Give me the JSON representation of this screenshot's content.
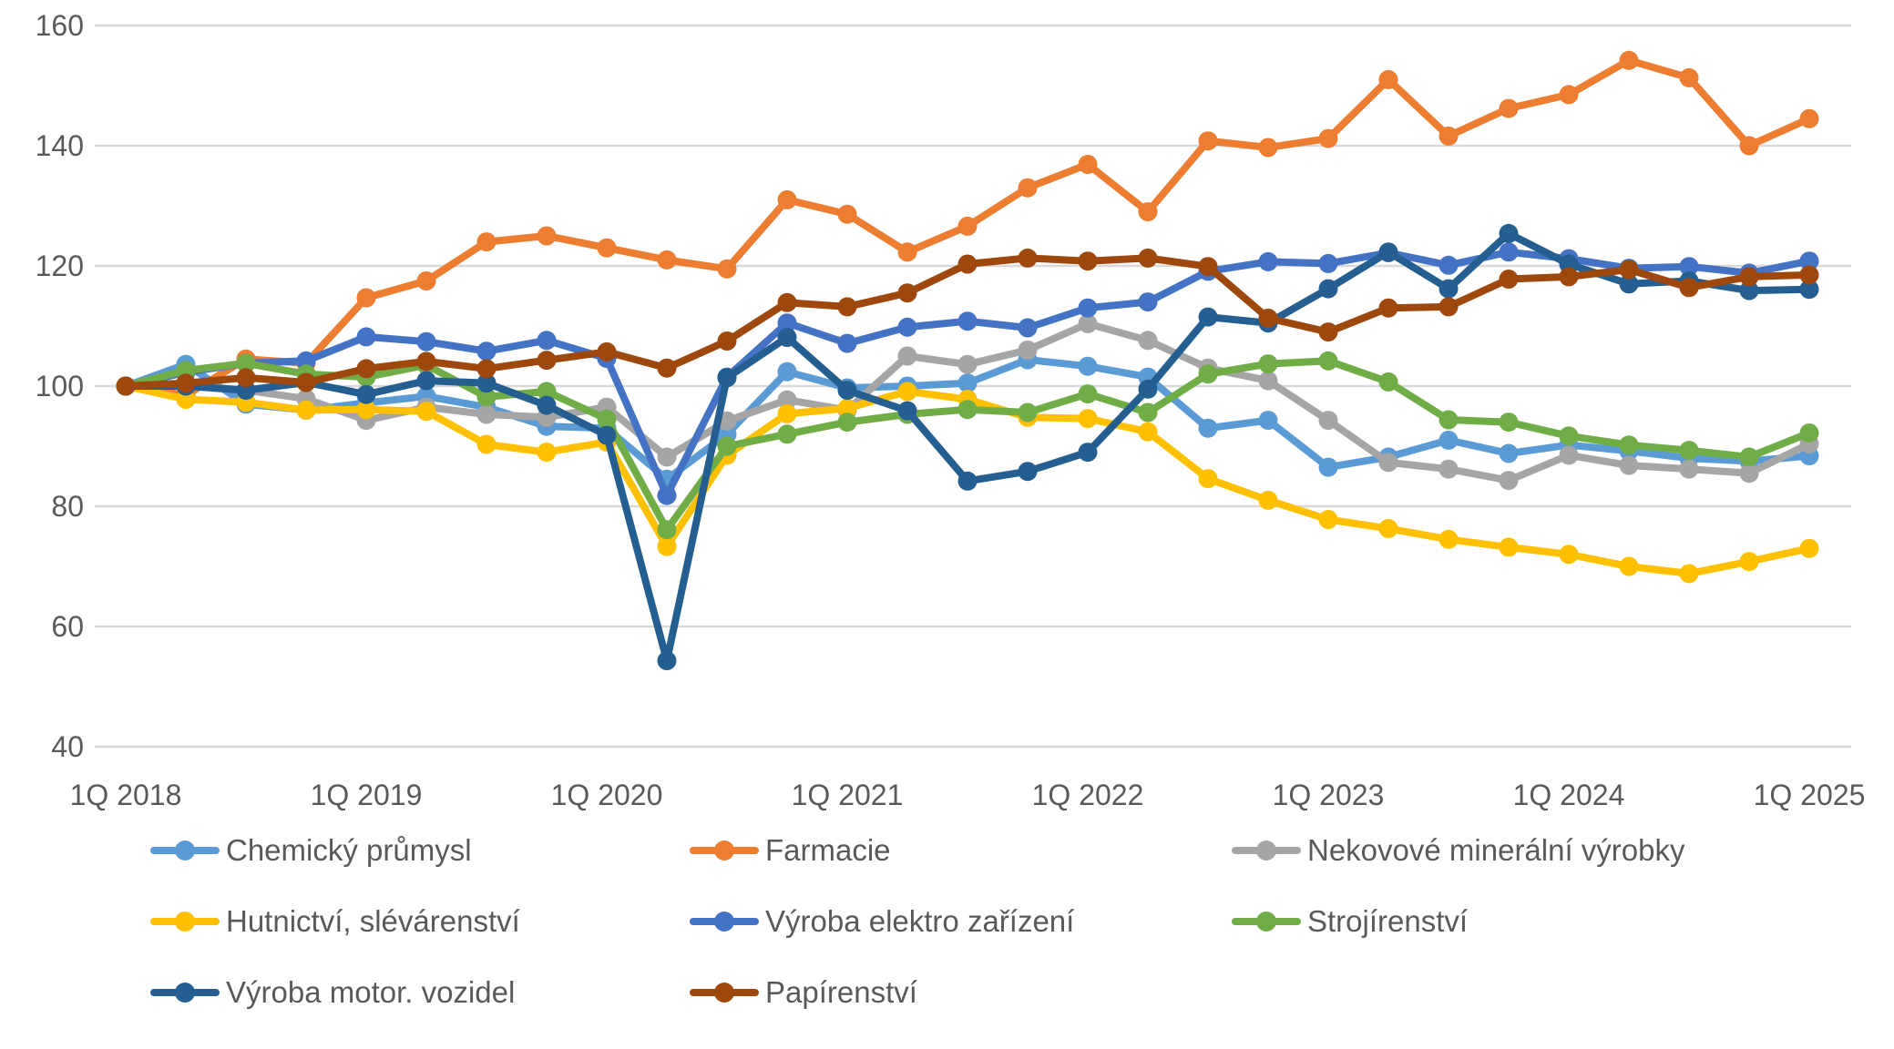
{
  "chart_data": {
    "type": "line",
    "title": "",
    "xlabel": "",
    "ylabel": "",
    "grid": true,
    "legend_position": "bottom-3-columns",
    "axis_text_color": "#595959",
    "gridline_color": "#D9D9D9",
    "y_axis": {
      "min": 40,
      "max": 160,
      "step": 20,
      "ticks": [
        40,
        60,
        80,
        100,
        120,
        140,
        160
      ]
    },
    "x_axis": {
      "visible_ticks": [
        "1Q 2018",
        "1Q 2019",
        "1Q 2020",
        "1Q 2021",
        "1Q 2022",
        "1Q 2023",
        "1Q 2024",
        "1Q 2025"
      ],
      "categories": [
        "1Q 2018",
        "2Q 2018",
        "3Q 2018",
        "4Q 2018",
        "1Q 2019",
        "2Q 2019",
        "3Q 2019",
        "4Q 2019",
        "1Q 2020",
        "2Q 2020",
        "3Q 2020",
        "4Q 2020",
        "1Q 2021",
        "2Q 2021",
        "3Q 2021",
        "4Q 2021",
        "1Q 2022",
        "2Q 2022",
        "3Q 2022",
        "4Q 2022",
        "1Q 2023",
        "2Q 2023",
        "3Q 2023",
        "4Q 2023",
        "1Q 2024",
        "2Q 2024",
        "3Q 2024",
        "4Q 2024",
        "1Q 2025"
      ]
    },
    "series": [
      {
        "key": "chemicky-prumysl",
        "name": "Chemický průmysl",
        "color": "#5B9BD5",
        "values": [
          100,
          103.6,
          97.0,
          96.0,
          97.2,
          98.3,
          96.5,
          93.3,
          93.0,
          84.5,
          92.0,
          102.4,
          99.7,
          100.0,
          100.5,
          104.4,
          103.3,
          101.5,
          93.0,
          94.3,
          86.5,
          88.2,
          91.0,
          88.8,
          90.2,
          89.2,
          88.0,
          87.5,
          88.4
        ]
      },
      {
        "key": "farmacie",
        "name": "Farmacie",
        "color": "#ED7D31",
        "values": [
          100,
          98.5,
          104.5,
          103.8,
          114.7,
          117.5,
          124.0,
          125.0,
          123.0,
          121.0,
          119.5,
          131.0,
          128.6,
          122.3,
          126.6,
          133.0,
          136.9,
          129.0,
          140.8,
          139.7,
          141.2,
          151.0,
          141.6,
          146.2,
          148.5,
          154.2,
          151.3,
          140.0,
          144.5
        ]
      },
      {
        "key": "nekovove-mineralni-vyrobky",
        "name": "Nekovové minerální výrobky",
        "color": "#A5A5A5",
        "values": [
          100,
          100.2,
          99.3,
          97.9,
          94.3,
          96.5,
          95.3,
          94.8,
          96.5,
          88.2,
          94.2,
          97.7,
          96.0,
          105.0,
          103.6,
          106.0,
          110.4,
          107.6,
          103.0,
          100.9,
          94.3,
          87.3,
          86.2,
          84.3,
          88.5,
          86.8,
          86.2,
          85.5,
          90.4
        ]
      },
      {
        "key": "hutnictvi-slevarenstvi",
        "name": "Hutnictví, slévárenství",
        "color": "#FFC000",
        "values": [
          100,
          97.8,
          97.3,
          96.0,
          96.1,
          95.8,
          90.3,
          89.0,
          90.7,
          73.3,
          88.5,
          95.4,
          96.3,
          99.1,
          97.8,
          94.8,
          94.6,
          92.4,
          84.6,
          81.0,
          77.8,
          76.3,
          74.5,
          73.2,
          72.0,
          70.0,
          68.8,
          70.8,
          73.0
        ]
      },
      {
        "key": "vyroba-elektro-zarizeni",
        "name": "Výroba elektro zařízení",
        "color": "#4472C4",
        "values": [
          100,
          102.3,
          103.8,
          104.2,
          108.2,
          107.4,
          105.8,
          107.6,
          104.6,
          81.8,
          101.5,
          110.5,
          107.1,
          109.8,
          110.8,
          109.7,
          113.0,
          114.0,
          119.1,
          120.7,
          120.4,
          122.2,
          120.1,
          122.3,
          121.2,
          119.6,
          119.9,
          118.8,
          120.8
        ]
      },
      {
        "key": "strojirenstvi",
        "name": "Strojírenství",
        "color": "#70AD47",
        "values": [
          100,
          102.6,
          103.8,
          102.0,
          101.5,
          103.5,
          98.2,
          99.1,
          94.5,
          76.1,
          90.0,
          92.0,
          94.0,
          95.3,
          96.1,
          95.6,
          98.7,
          95.6,
          102.0,
          103.7,
          104.2,
          100.7,
          94.4,
          94.0,
          91.7,
          90.2,
          89.3,
          88.2,
          92.2
        ]
      },
      {
        "key": "vyroba-motor-vozidel",
        "name": "Výroba motor. vozidel",
        "color": "#255E91",
        "values": [
          100,
          100.0,
          99.3,
          100.6,
          98.6,
          100.9,
          100.5,
          96.8,
          91.8,
          54.3,
          101.4,
          108.1,
          99.3,
          95.9,
          84.2,
          85.8,
          89.0,
          99.5,
          111.5,
          110.5,
          116.2,
          122.3,
          116.2,
          125.4,
          120.3,
          117.0,
          117.5,
          115.9,
          116.1
        ]
      },
      {
        "key": "papirenstvi",
        "name": "Papírenství",
        "color": "#9E480E",
        "values": [
          100,
          100.5,
          101.4,
          100.6,
          102.9,
          104.1,
          102.9,
          104.3,
          105.7,
          103.0,
          107.5,
          113.9,
          113.2,
          115.5,
          120.3,
          121.3,
          120.8,
          121.3,
          119.9,
          111.3,
          109.0,
          113.0,
          113.2,
          117.8,
          118.2,
          119.4,
          116.4,
          118.2,
          118.5
        ]
      }
    ]
  }
}
